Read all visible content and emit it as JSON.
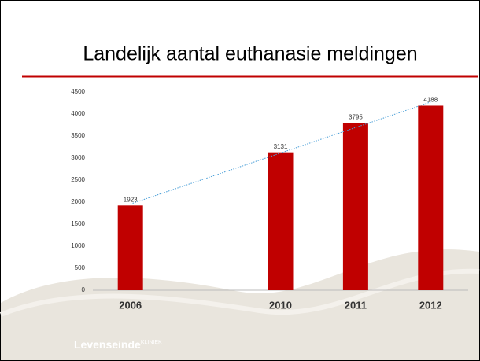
{
  "chart_data": {
    "type": "bar",
    "title": "Landelijk aantal euthanasie meldingen",
    "categories": [
      "2006",
      null,
      "2010",
      "2011",
      "2012"
    ],
    "values": [
      1923,
      null,
      3131,
      3795,
      4188
    ],
    "color": "#c00000",
    "ylim": [
      0,
      4500
    ],
    "yticks": [
      0,
      500,
      1000,
      1500,
      2000,
      2500,
      3000,
      3500,
      4000,
      4500
    ],
    "grid": false,
    "trendline": true,
    "trendline_color": "#4a9fd8"
  },
  "footer": {
    "brand": "Levenseinde",
    "suffix": "KLINIEK"
  }
}
